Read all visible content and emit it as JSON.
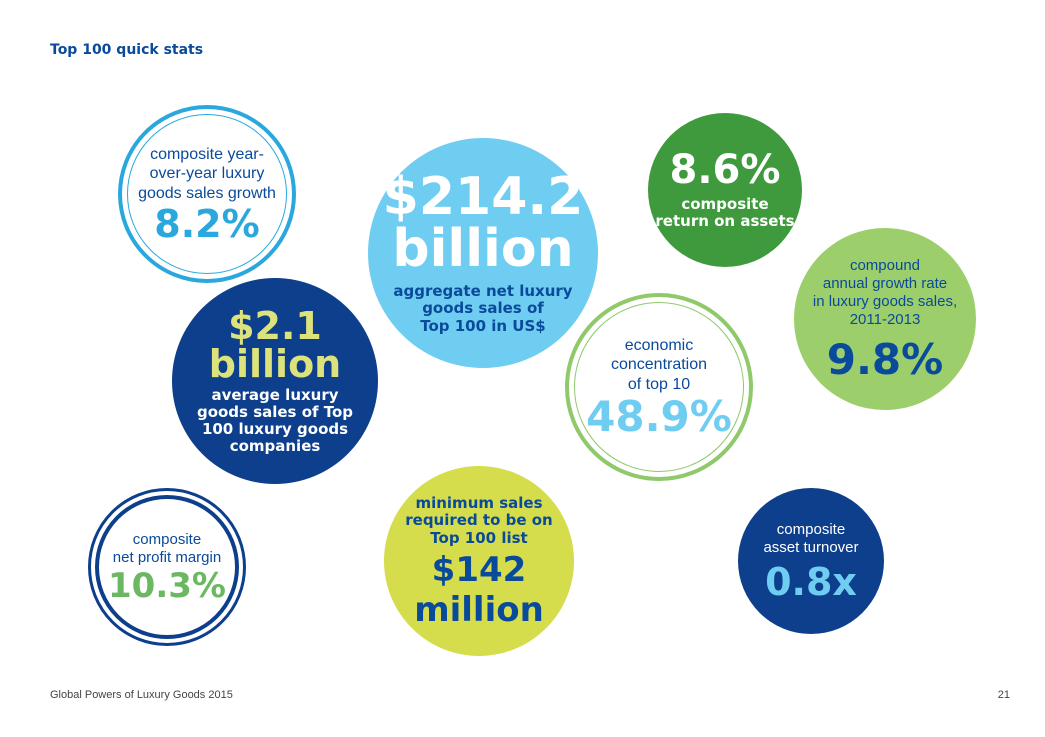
{
  "header": {
    "title": "Top 100 quick stats"
  },
  "stats": {
    "yoy_growth": {
      "label_lines": [
        "composite year-",
        "over-year luxury",
        "goods sales growth"
      ],
      "value": "8.2%"
    },
    "aggregate_sales": {
      "value_line1": "$214.2",
      "value_line2": "billion",
      "label_lines": [
        "aggregate net luxury",
        "goods sales of",
        "Top 100 in US$"
      ]
    },
    "roa": {
      "value": "8.6%",
      "label_lines": [
        "composite",
        "return on assets"
      ]
    },
    "cagr": {
      "label_lines": [
        "compound",
        "annual growth rate",
        "in luxury goods sales,",
        "2011-2013"
      ],
      "value": "9.8%"
    },
    "concentration": {
      "label_lines": [
        "economic",
        "concentration",
        "of top 10"
      ],
      "value": "48.9%"
    },
    "average_sales": {
      "value_line1": "$2.1",
      "value_line2": "billion",
      "label_lines": [
        "average luxury",
        "goods sales of Top",
        "100 luxury goods",
        "companies"
      ]
    },
    "net_profit": {
      "label_lines": [
        "composite",
        "net profit margin"
      ],
      "value": "10.3%"
    },
    "minimum_sales": {
      "label_lines": [
        "minimum sales",
        "required to be on",
        "Top 100 list"
      ],
      "value_line1": "$142",
      "value_line2": "million"
    },
    "asset_turnover": {
      "label_lines": [
        "composite",
        "asset turnover"
      ],
      "value": "0.8x"
    }
  },
  "footer": {
    "publication": "Global Powers of Luxury Goods 2015",
    "page_number": "21"
  },
  "colors": {
    "navy": "#0d3f8c",
    "title_blue": "#0a4a9a",
    "sky_blue": "#70cdf2",
    "bright_blue": "#2aa8de",
    "green": "#3e9a3c",
    "light_green": "#9cce6b",
    "yellow_green": "#d5dd4c",
    "khaki": "#dde37c"
  }
}
